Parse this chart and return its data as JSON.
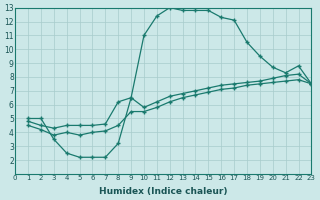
{
  "xlabel": "Humidex (Indice chaleur)",
  "bg_color": "#cce8e8",
  "line_color": "#1a7a6e",
  "grid_color": "#a8cccc",
  "xlim": [
    0,
    23
  ],
  "ylim": [
    1,
    13
  ],
  "xticks": [
    0,
    1,
    2,
    3,
    4,
    5,
    6,
    7,
    8,
    9,
    10,
    11,
    12,
    13,
    14,
    15,
    16,
    17,
    18,
    19,
    20,
    21,
    22,
    23
  ],
  "yticks": [
    2,
    3,
    4,
    5,
    6,
    7,
    8,
    9,
    10,
    11,
    12,
    13
  ],
  "line1_x": [
    1,
    2,
    3,
    4,
    5,
    6,
    7,
    8,
    9,
    10,
    11,
    12,
    13,
    14,
    15,
    16,
    17,
    18,
    19,
    20,
    21,
    22,
    23
  ],
  "line1_y": [
    5.0,
    5.0,
    3.5,
    2.5,
    2.2,
    2.2,
    2.2,
    3.2,
    6.5,
    11.0,
    12.4,
    13.0,
    12.8,
    12.8,
    12.8,
    12.3,
    12.1,
    10.5,
    9.5,
    8.7,
    8.3,
    8.8,
    7.5
  ],
  "line2_x": [
    1,
    2,
    3,
    4,
    5,
    6,
    7,
    8,
    9,
    10,
    11,
    12,
    13,
    14,
    15,
    16,
    17,
    18,
    19,
    20,
    21,
    22,
    23
  ],
  "line2_y": [
    4.8,
    4.5,
    4.3,
    4.5,
    4.5,
    4.5,
    4.6,
    6.2,
    6.5,
    5.8,
    6.2,
    6.6,
    6.8,
    7.0,
    7.2,
    7.4,
    7.5,
    7.6,
    7.7,
    7.9,
    8.1,
    8.2,
    7.5
  ],
  "line3_x": [
    1,
    2,
    3,
    4,
    5,
    6,
    7,
    8,
    9,
    10,
    11,
    12,
    13,
    14,
    15,
    16,
    17,
    18,
    19,
    20,
    21,
    22,
    23
  ],
  "line3_y": [
    4.5,
    4.2,
    3.8,
    4.0,
    3.8,
    4.0,
    4.1,
    4.5,
    5.5,
    5.5,
    5.8,
    6.2,
    6.5,
    6.7,
    6.9,
    7.1,
    7.2,
    7.4,
    7.5,
    7.6,
    7.7,
    7.8,
    7.5
  ]
}
